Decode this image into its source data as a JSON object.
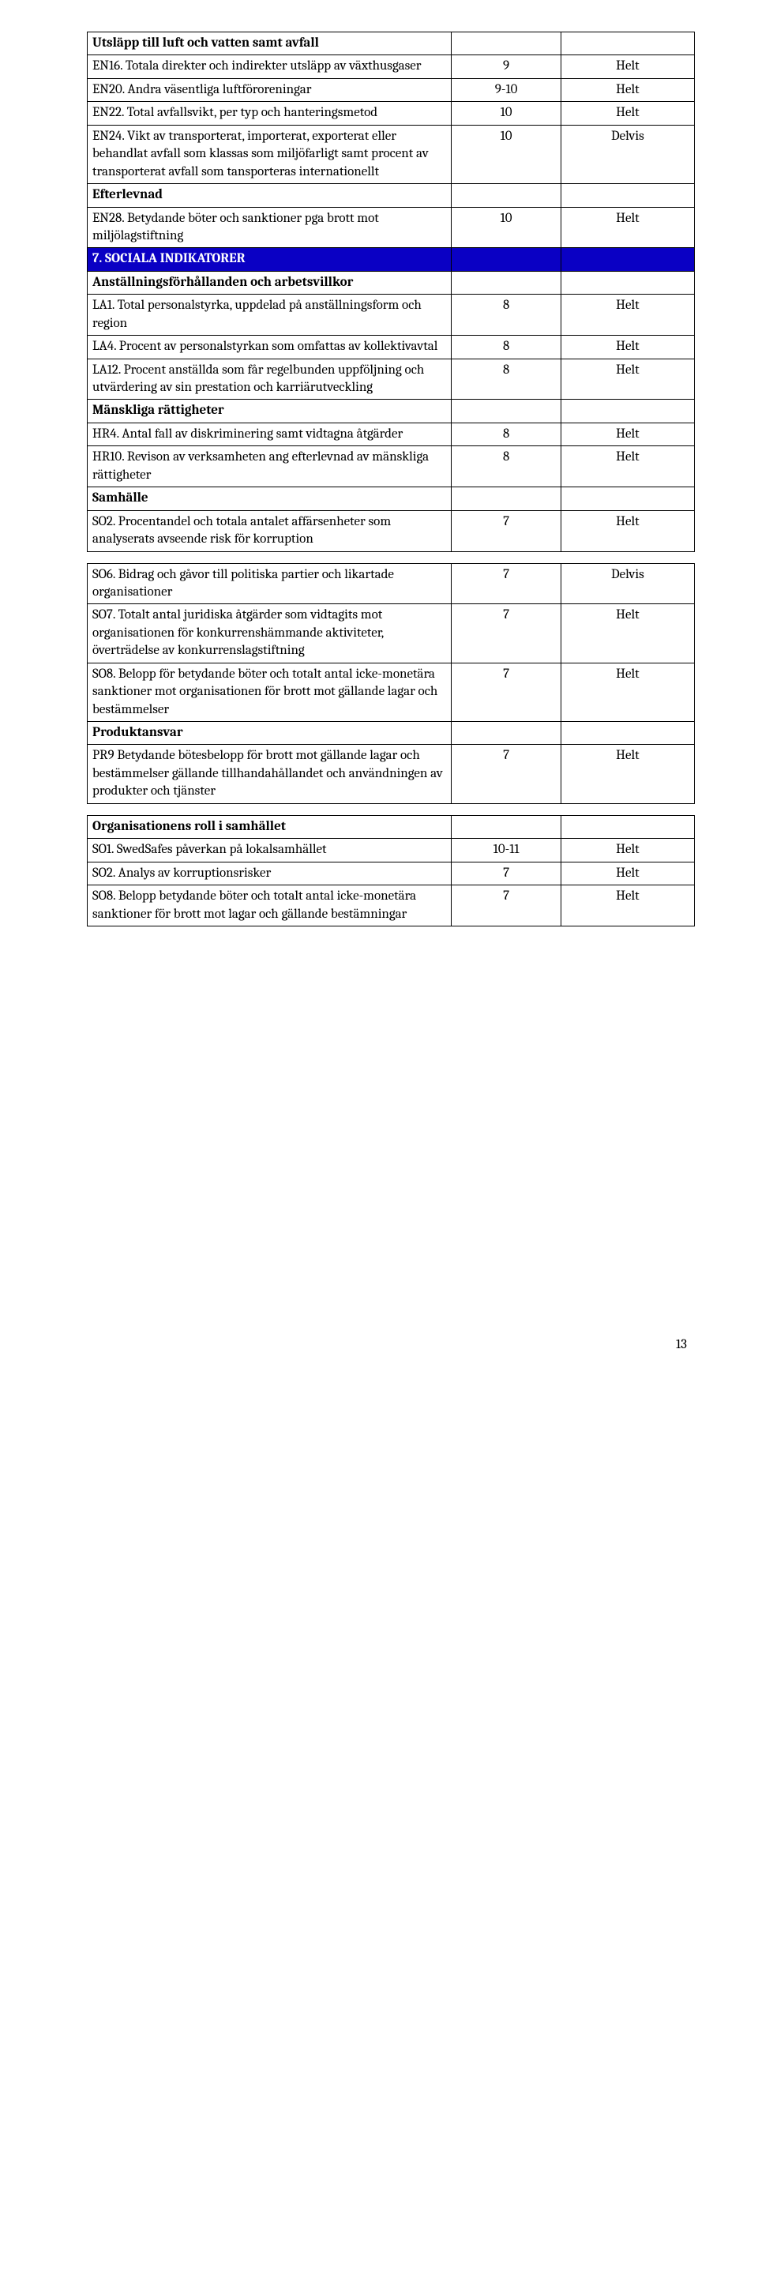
{
  "tables": [
    {
      "style": "main",
      "rows": [
        {
          "cells": [
            "Utsläpp till luft och vatten samt avfall",
            "",
            ""
          ],
          "bold": true
        },
        {
          "cells": [
            "EN16. Totala direkter och indirekter utsläpp av växthusgaser",
            "9",
            "Helt"
          ]
        },
        {
          "cells": [
            "EN20. Andra väsentliga luftföroreningar",
            "9-10",
            "Helt"
          ]
        },
        {
          "cells": [
            "EN22. Total avfallsvikt, per typ och hanteringsmetod",
            "10",
            "Helt"
          ]
        },
        {
          "cells": [
            "EN24. Vikt av transporterat, importerat, exporterat eller behandlat avfall som klassas som miljöfarligt samt procent av transporterat avfall som tansporteras internationellt",
            "10",
            "Delvis"
          ]
        },
        {
          "cells": [
            "Efterlevnad",
            "",
            ""
          ],
          "bold": true
        },
        {
          "cells": [
            "EN28. Betydande böter och sanktioner pga brott mot miljölagstiftning",
            "10",
            "Helt"
          ]
        },
        {
          "cells": [
            "7. SOCIALA INDIKATORER",
            "",
            ""
          ],
          "blue": true
        },
        {
          "cells": [
            "Anställningsförhållanden och arbetsvillkor",
            "",
            ""
          ],
          "bold": true
        },
        {
          "cells": [
            "LA1. Total personalstyrka, uppdelad på anställningsform och region",
            "8",
            "Helt"
          ]
        },
        {
          "cells": [
            "LA4. Procent av personalstyrkan som omfattas av kollektivavtal",
            "8",
            "Helt"
          ]
        },
        {
          "cells": [
            "LA12. Procent anställda som får regelbunden uppföljning och utvärdering av sin prestation och karriärutveckling",
            "8",
            "Helt"
          ]
        },
        {
          "cells": [
            "Mänskliga rättigheter",
            "",
            ""
          ],
          "bold": true
        },
        {
          "cells": [
            "HR4. Antal fall av diskriminering samt vidtagna åtgärder",
            "8",
            "Helt"
          ]
        },
        {
          "cells": [
            "HR10. Revison av verksamheten ang efterlevnad av mänskliga rättigheter",
            "8",
            "Helt"
          ]
        },
        {
          "cells": [
            "Samhälle",
            "",
            ""
          ],
          "bold": true
        },
        {
          "cells": [
            "SO2. Procentandel och totala antalet affärsenheter som analyserats avseende risk för korruption",
            "7",
            "Helt"
          ]
        }
      ]
    },
    {
      "style": "main",
      "rows": [
        {
          "cells": [
            "SO6. Bidrag och gåvor till politiska partier och likartade organisationer",
            "7",
            "Delvis"
          ]
        },
        {
          "cells": [
            "SO7. Totalt antal juridiska åtgärder som vidtagits mot organisationen för konkurrenshämmande aktiviteter, överträdelse av konkurrenslagstiftning",
            "7",
            "Helt"
          ]
        },
        {
          "cells": [
            "SO8. Belopp för betydande böter och totalt antal icke-monetära sanktioner mot organisationen för brott mot gällande lagar och bestämmelser",
            "7",
            "Helt"
          ]
        },
        {
          "cells": [
            "Produktansvar",
            "",
            ""
          ],
          "bold": true
        },
        {
          "cells": [
            "PR9 Betydande bötesbelopp för brott mot gällande lagar och bestämmelser gällande tillhandahållandet och användningen av produkter och tjänster",
            "7",
            "Helt"
          ]
        }
      ]
    },
    {
      "style": "main",
      "rows": [
        {
          "cells": [
            "Organisationens roll i samhället",
            "",
            ""
          ],
          "bold": true
        },
        {
          "cells": [
            "SO1. SwedSafes påverkan på lokalsamhället",
            "10-11",
            "Helt"
          ]
        },
        {
          "cells": [
            "SO2. Analys av korruptionsrisker",
            "7",
            "Helt"
          ]
        },
        {
          "cells": [
            "SO8. Belopp betydande böter och totalt antal icke-monetära sanktioner för brott mot lagar och gällande bestämningar",
            "7",
            "Helt"
          ]
        }
      ]
    }
  ],
  "pageNumber": "13"
}
